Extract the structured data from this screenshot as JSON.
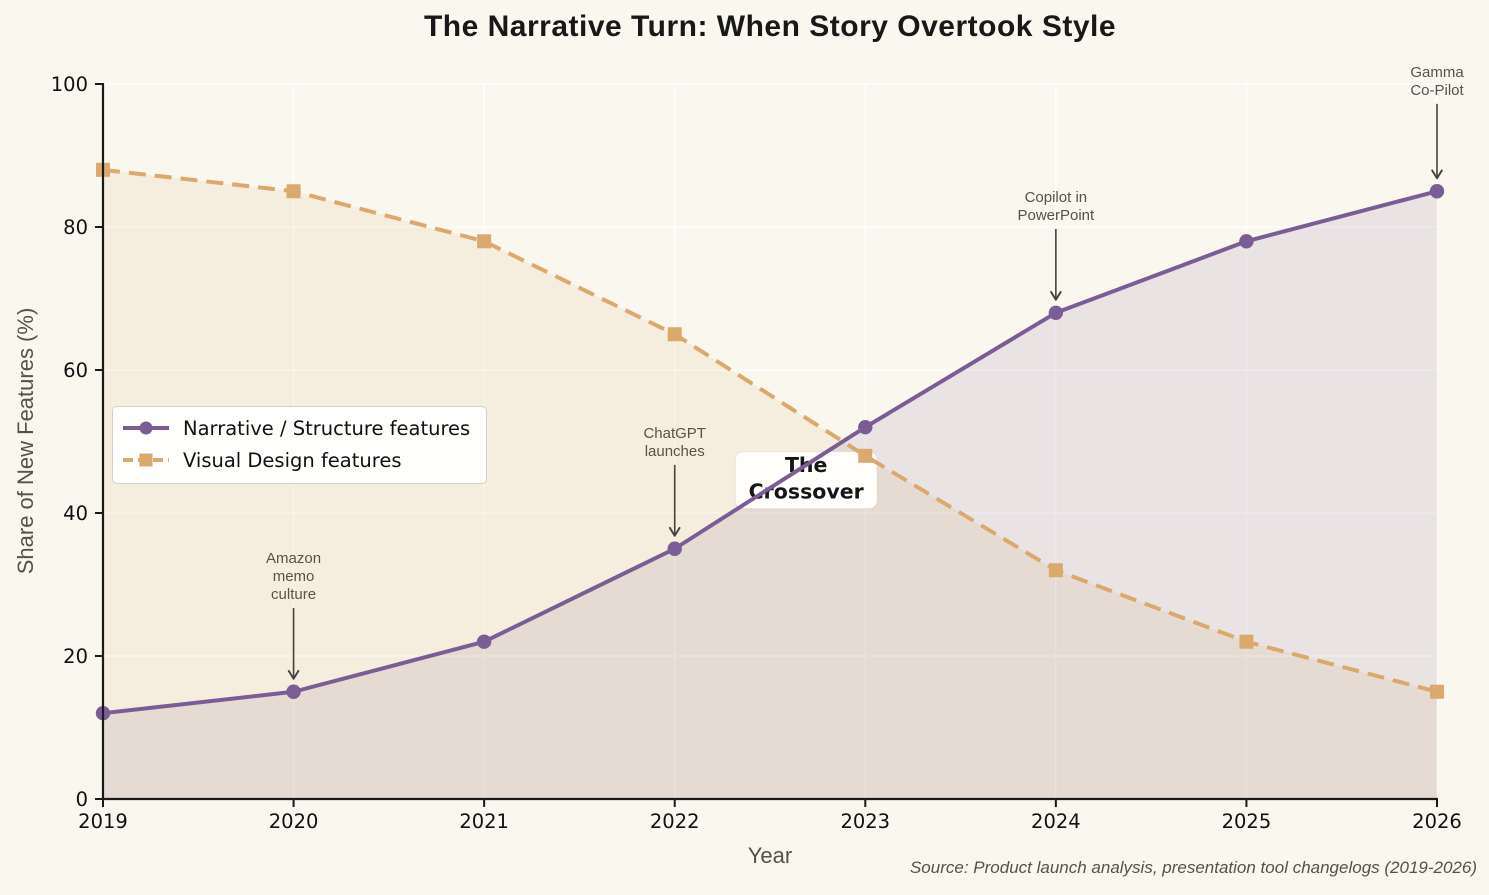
{
  "title": "The Narrative Turn: When Story Overtook Style",
  "source_note": "Source: Product launch analysis, presentation tool changelogs (2019-2026)",
  "legend": {
    "items": [
      {
        "label": "Narrative / Structure features"
      },
      {
        "label": "Visual Design features"
      }
    ]
  },
  "chart_data": {
    "type": "line",
    "title": "The Narrative Turn: When Story Overtook Style",
    "xlabel": "Year",
    "ylabel": "Share of New Features (%)",
    "x": [
      2019,
      2020,
      2021,
      2022,
      2023,
      2024,
      2025,
      2026
    ],
    "x_ticks": [
      2019,
      2020,
      2021,
      2022,
      2023,
      2024,
      2025,
      2026
    ],
    "y_ticks": [
      0,
      20,
      40,
      60,
      80,
      100
    ],
    "ylim": [
      0,
      100
    ],
    "grid": true,
    "legend_position": "center-left",
    "series": [
      {
        "name": "Narrative / Structure features",
        "values": [
          12,
          15,
          22,
          35,
          52,
          68,
          78,
          85
        ],
        "color": "#7B5D96",
        "marker": "circle",
        "line_style": "solid",
        "area_fill": true
      },
      {
        "name": "Visual Design features",
        "values": [
          88,
          85,
          78,
          65,
          48,
          32,
          22,
          15
        ],
        "color": "#DBA96E",
        "marker": "square",
        "line_style": "dashed",
        "area_fill": true
      }
    ],
    "annotations": [
      {
        "type": "arrow",
        "lines": [
          "Amazon",
          "memo",
          "culture"
        ],
        "x": 2020,
        "target_y": 15,
        "text_top_y": 33
      },
      {
        "type": "arrow",
        "lines": [
          "ChatGPT",
          "launches"
        ],
        "x": 2022,
        "target_y": 35,
        "text_top_y": 50.5
      },
      {
        "type": "arrow",
        "lines": [
          "Copilot in",
          "PowerPoint"
        ],
        "x": 2024,
        "target_y": 68,
        "text_top_y": 83.5
      },
      {
        "type": "arrow",
        "lines": [
          "Gamma",
          "Co-Pilot"
        ],
        "x": 2026,
        "target_y": 85,
        "text_top_y": 101
      },
      {
        "type": "box",
        "lines": [
          "The",
          "Crossover"
        ],
        "x": 2022.69,
        "y": 44.6
      }
    ]
  },
  "colors": {
    "background": "#FAF7EF",
    "grid": "#FFFFFF",
    "spine": "#1A1A1A",
    "tick_label": "#111111",
    "axis_label": "#55524C",
    "annotation_text": "#57534C",
    "arrow": "#45423C",
    "crossover_box_bg": "#FFFEFA",
    "title": "#181818",
    "fill_alpha": 0.13
  }
}
